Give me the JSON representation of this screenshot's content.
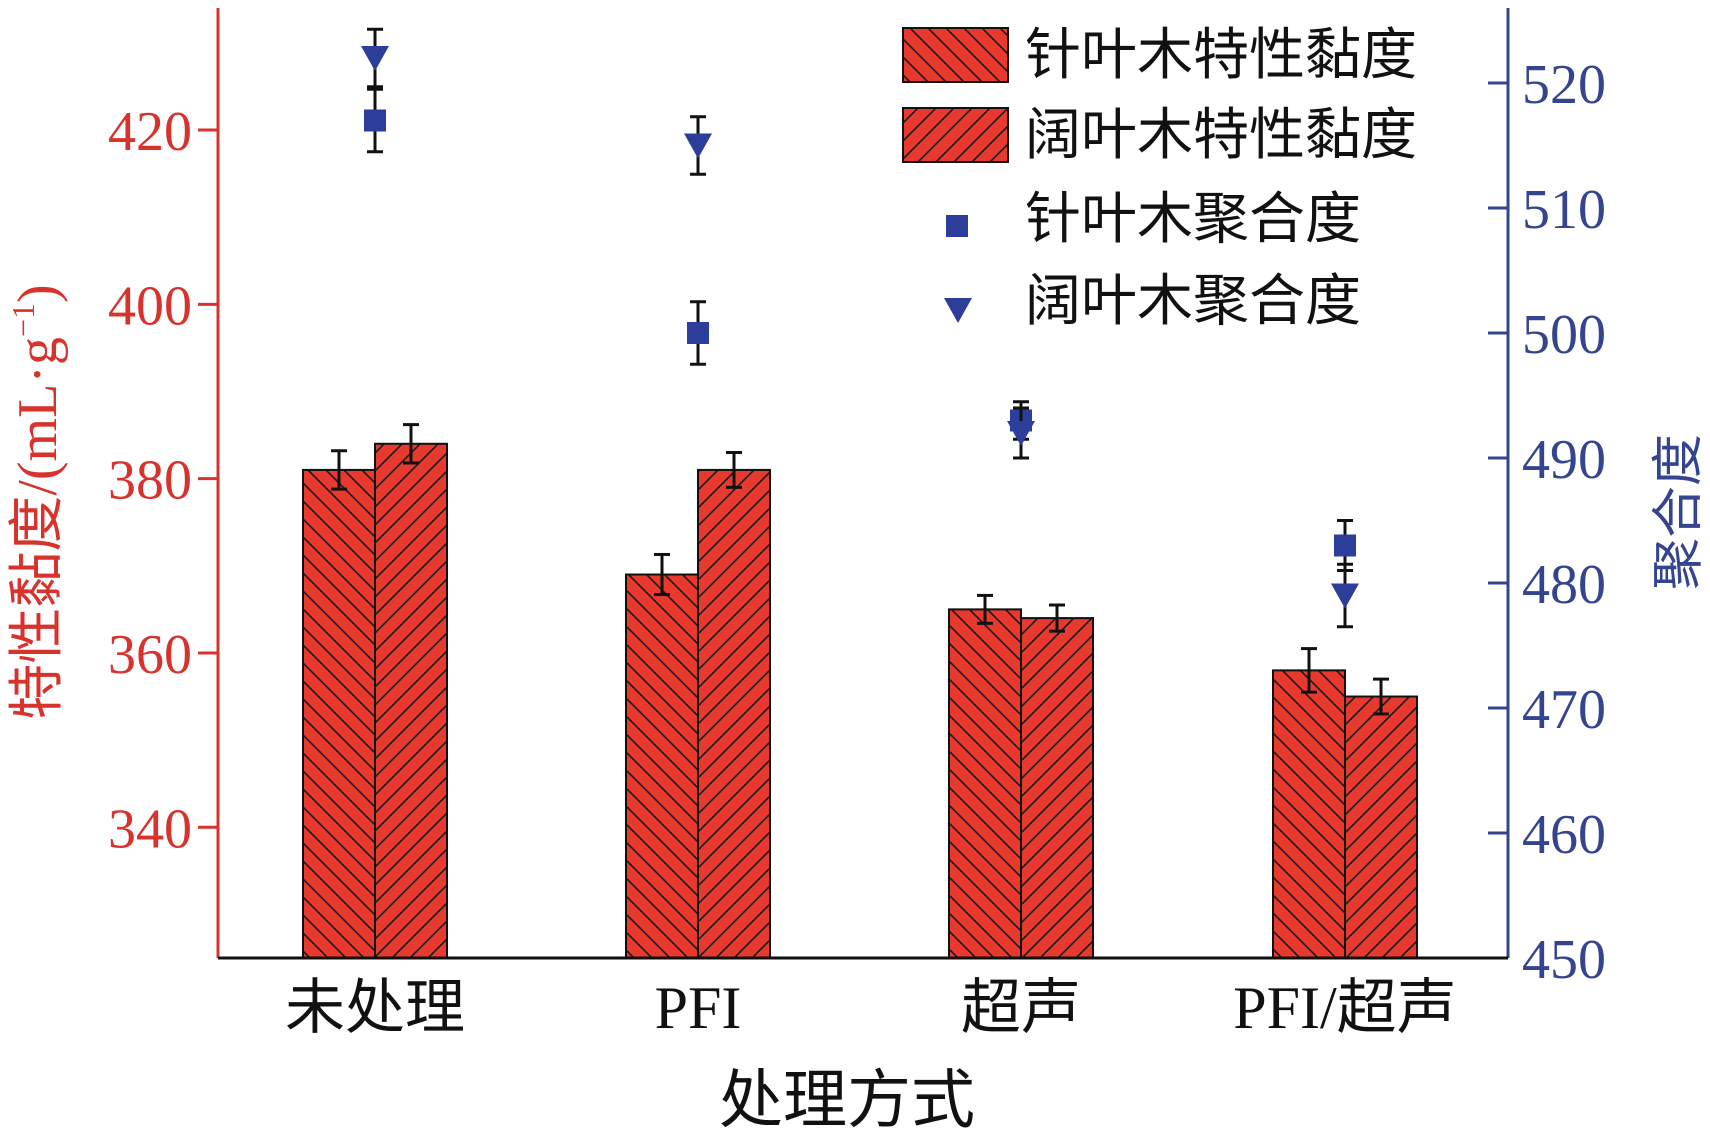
{
  "colors": {
    "left_axis": "#d8322c",
    "right_axis": "#34448f",
    "bar_fill": "#e8392f",
    "hatch": "#1a1a1a",
    "marker": "#2d3e9a",
    "error_bar": "#111111",
    "text": "#111111"
  },
  "chart_data": {
    "type": "bar",
    "title": "",
    "xlabel": "处理方式",
    "ylabel": "特性黏度/(mL·g⁻¹)",
    "ylabel_parts": {
      "main": "特性黏度/(mL·g",
      "sup": "−1",
      "tail": ")"
    },
    "y2label": "聚合度",
    "categories": [
      "未处理",
      "PFI",
      "超声",
      "PFI/超声"
    ],
    "ylim": [
      325,
      434
    ],
    "y2lim": [
      450,
      526
    ],
    "yticks": [
      340,
      360,
      380,
      400,
      420
    ],
    "y2ticks": [
      450,
      460,
      470,
      480,
      490,
      500,
      510,
      520
    ],
    "grid": false,
    "legend_position": "top-right",
    "series": [
      {
        "name": "针叶木特性黏度",
        "kind": "bar",
        "axis": "left",
        "hatch": "backslash",
        "values": [
          381,
          369,
          365,
          358
        ],
        "errors": [
          2.2,
          2.3,
          1.6,
          2.5
        ]
      },
      {
        "name": "阔叶木特性黏度",
        "kind": "bar",
        "axis": "left",
        "hatch": "slash",
        "values": [
          384,
          381,
          364,
          355
        ],
        "errors": [
          2.2,
          2.0,
          1.5,
          2.0
        ]
      },
      {
        "name": "针叶木聚合度",
        "kind": "scatter",
        "axis": "right",
        "marker": "square",
        "values": [
          517,
          500,
          493,
          483
        ],
        "errors": [
          2.5,
          2.5,
          1.5,
          2.0
        ]
      },
      {
        "name": "阔叶木聚合度",
        "kind": "scatter",
        "axis": "right",
        "marker": "triangle-down",
        "values": [
          522,
          515,
          492,
          479
        ],
        "errors": [
          2.3,
          2.3,
          2.0,
          2.5
        ]
      }
    ]
  }
}
